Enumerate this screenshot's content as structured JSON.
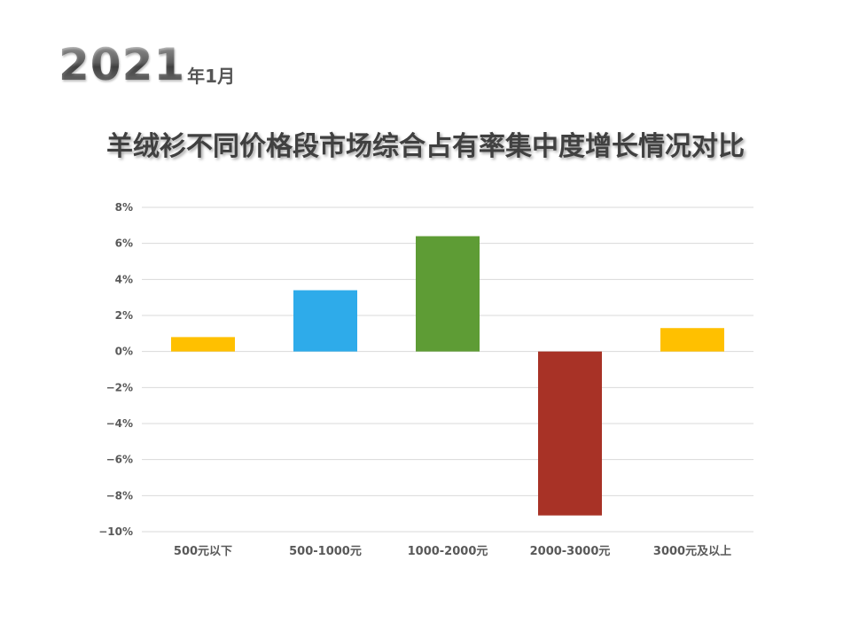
{
  "header": {
    "year": "2021",
    "year_suffix": "年1月"
  },
  "chart_data": {
    "type": "bar",
    "title": "羊绒衫不同价格段市场综合占有率集中度增长情况对比",
    "categories": [
      "500元以下",
      "500-1000元",
      "1000-2000元",
      "2000-3000元",
      "3000元及以上"
    ],
    "values": [
      0.8,
      3.4,
      6.4,
      -9.1,
      1.3
    ],
    "colors": [
      "#FFC000",
      "#2EABEA",
      "#5E9C35",
      "#A83226",
      "#FFC000"
    ],
    "ylim": [
      -10,
      8
    ],
    "yticks": [
      8,
      6,
      4,
      2,
      0,
      -2,
      -4,
      -6,
      -8,
      -10
    ],
    "ytick_labels": [
      "8%",
      "6%",
      "4%",
      "2%",
      "0%",
      "−2%",
      "−4%",
      "−6%",
      "−8%",
      "−10%"
    ],
    "grid": true,
    "legend": "none"
  }
}
